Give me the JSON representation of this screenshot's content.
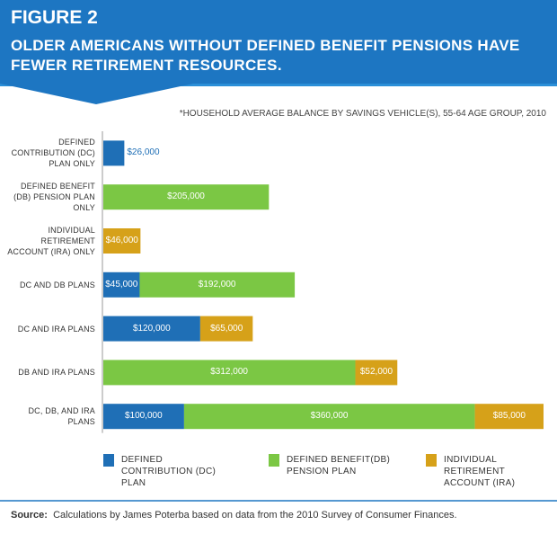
{
  "chart_data": {
    "type": "hbar_stacked",
    "title": "FIGURE 2",
    "subtitle": "OLDER AMERICANS WITHOUT DEFINED BENEFIT PENSIONS HAVE FEWER RETIREMENT RESOURCES.",
    "note": "*HOUSEHOLD AVERAGE BALANCE BY SAVINGS VEHICLE(S), 55-64 AGE GROUP, 2010",
    "categories": [
      "DEFINED CONTRIBUTION (DC) PLAN ONLY",
      "DEFINED BENEFIT (DB) PENSION PLAN ONLY",
      "INDIVIDUAL RETIREMENT ACCOUNT (IRA) ONLY",
      "DC AND DB PLANS",
      "DC AND IRA PLANS",
      "DB AND IRA PLANS",
      "DC, DB, AND IRA PLANS"
    ],
    "series": [
      {
        "name": "DEFINED CONTRIBUTION (DC) PLAN",
        "color": "#1f6fb6",
        "values": [
          26000,
          null,
          null,
          45000,
          120000,
          null,
          100000
        ],
        "value_labels": [
          "$26,000",
          null,
          null,
          "$45,000",
          "$120,000",
          null,
          "$100,000"
        ]
      },
      {
        "name": "DEFINED BENEFIT(DB) PENSION PLAN",
        "color": "#7bc744",
        "values": [
          null,
          205000,
          null,
          192000,
          null,
          312000,
          360000
        ],
        "value_labels": [
          null,
          "$205,000",
          null,
          "$192,000",
          null,
          "$312,000",
          "$360,000"
        ]
      },
      {
        "name": "INDIVIDUAL RETIREMENT ACCOUNT (IRA)",
        "color": "#d6a119",
        "values": [
          null,
          null,
          46000,
          null,
          65000,
          52000,
          85000
        ],
        "value_labels": [
          null,
          null,
          "$46,000",
          null,
          "$65,000",
          "$52,000",
          "$85,000"
        ]
      }
    ],
    "xlim": [
      0,
      545000
    ],
    "source_label": "Source:",
    "source": "Calculations by James Poterba based on data from the 2010 Survey of Consumer Finances."
  }
}
